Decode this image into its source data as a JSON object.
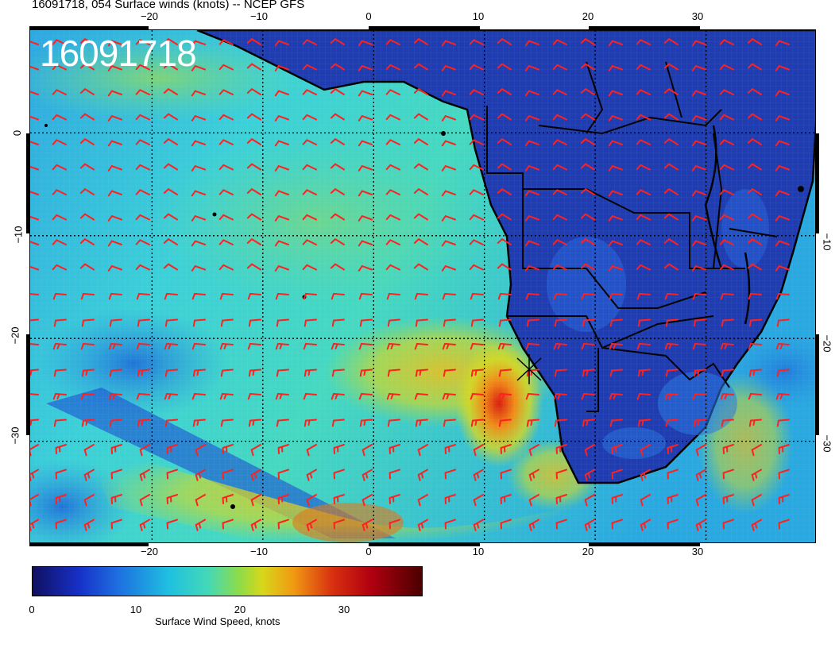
{
  "header": {
    "title": "16091718, 054 Surface winds (knots) -- NCEP GFS"
  },
  "map": {
    "stamp": "16091718",
    "lon_ticks": [
      "−20",
      "−10",
      "0",
      "10",
      "20",
      "30"
    ],
    "lat_ticks": [
      "0",
      "−10",
      "−20",
      "−30"
    ],
    "lon_range": [
      -31,
      40
    ],
    "lat_range": [
      -40,
      10
    ],
    "field": "surface wind speed",
    "overlays": [
      "coastlines",
      "country-borders",
      "wind-barbs",
      "lat-lon-gridlines"
    ],
    "barb_color": "#ff2020",
    "land_color": "#1f3db0"
  },
  "colorbar": {
    "label": "Surface Wind Speed, knots",
    "ticks": [
      "0",
      "10",
      "20",
      "30"
    ],
    "range": [
      0,
      37.5
    ],
    "colormap": "jet"
  }
}
